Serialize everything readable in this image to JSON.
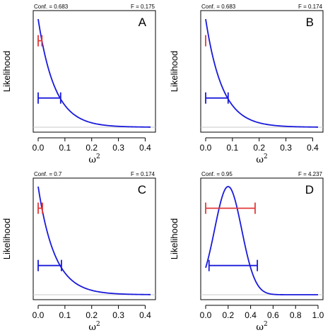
{
  "chart_data": [
    {
      "type": "line",
      "panel_label": "A",
      "conf_text": "Conf. = 0.683",
      "f_text": "F = 0.175",
      "ylabel": "Likelihood",
      "xlabel_base": "ω",
      "xlabel_sup": "2",
      "xlim": [
        0,
        0.42
      ],
      "xticks": [
        0.0,
        0.1,
        0.2,
        0.3,
        0.4
      ],
      "xtick_labels": [
        "0.0",
        "0.1",
        "0.2",
        "0.3",
        "0.4"
      ],
      "curve": {
        "shape": "decay",
        "rate": 16
      },
      "red_interval": {
        "lo": 0.0,
        "hi": 0.014,
        "level": 0.8
      },
      "blue_interval": {
        "lo": 0.0,
        "hi": 0.084,
        "level": 0.27
      },
      "baseline": true
    },
    {
      "type": "line",
      "panel_label": "B",
      "conf_text": "Conf. = 0.683",
      "f_text": "F = 0.174",
      "ylabel": "Likelihood",
      "xlabel_base": "ω",
      "xlabel_sup": "2",
      "xlim": [
        0,
        0.42
      ],
      "xticks": [
        0.0,
        0.1,
        0.2,
        0.3,
        0.4
      ],
      "xtick_labels": [
        "0.0",
        "0.1",
        "0.2",
        "0.3",
        "0.4"
      ],
      "curve": {
        "shape": "decay",
        "rate": 16
      },
      "red_interval": {
        "lo": 0.0,
        "hi": 0.0,
        "level": 0.8
      },
      "blue_interval": {
        "lo": 0.0,
        "hi": 0.084,
        "level": 0.27
      },
      "baseline": true
    },
    {
      "type": "line",
      "panel_label": "C",
      "conf_text": "Conf. = 0.7",
      "f_text": "F = 0.174",
      "ylabel": "Likelihood",
      "xlabel_base": "ω",
      "xlabel_sup": "2",
      "xlim": [
        0,
        0.42
      ],
      "xticks": [
        0.0,
        0.1,
        0.2,
        0.3,
        0.4
      ],
      "xtick_labels": [
        "0.0",
        "0.1",
        "0.2",
        "0.3",
        "0.4"
      ],
      "curve": {
        "shape": "decay",
        "rate": 16
      },
      "red_interval": {
        "lo": 0.0,
        "hi": 0.016,
        "level": 0.8
      },
      "blue_interval": {
        "lo": 0.0,
        "hi": 0.087,
        "level": 0.27
      },
      "baseline": true
    },
    {
      "type": "line",
      "panel_label": "D",
      "conf_text": "Conf. = 0.95",
      "f_text": "F = 4.237",
      "ylabel": "Likelihood",
      "xlabel_base": "ω",
      "xlabel_sup": "2",
      "xlim": [
        0,
        1.0
      ],
      "xticks": [
        0.0,
        0.2,
        0.4,
        0.6,
        0.8,
        1.0
      ],
      "xtick_labels": [
        "0.0",
        "0.2",
        "0.4",
        "0.6",
        "0.8",
        "1.0"
      ],
      "curve": {
        "shape": "bell",
        "mu": 0.2,
        "sigma": 0.12
      },
      "red_interval": {
        "lo": 0.0,
        "hi": 0.44,
        "level": 0.8
      },
      "blue_interval": {
        "lo": 0.03,
        "hi": 0.46,
        "level": 0.27
      },
      "baseline": true
    }
  ],
  "colors": {
    "curve": "#1a1adb",
    "blue_interval": "#1a1adb",
    "red_interval": "#e03a3a",
    "baseline": "#c8c8c8",
    "axis": "#000000"
  }
}
